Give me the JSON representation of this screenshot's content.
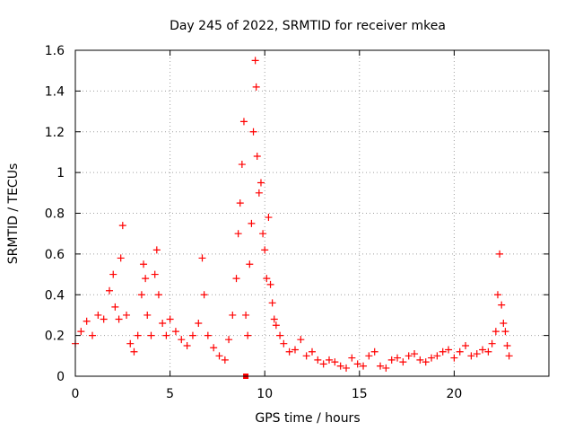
{
  "chart_data": {
    "type": "scatter",
    "title": "Day 245 of 2022, SRMTID for receiver mkea",
    "xlabel": "GPS time / hours",
    "ylabel": "SRMTID / TECUs",
    "xlim": [
      0,
      25
    ],
    "ylim": [
      0,
      1.6
    ],
    "xticks": [
      0,
      5,
      10,
      15,
      20
    ],
    "yticks": [
      0,
      0.2,
      0.4,
      0.6,
      0.8,
      1,
      1.2,
      1.4,
      1.6
    ],
    "xtick_labels": [
      "0",
      "5",
      "10",
      "15",
      "20"
    ],
    "ytick_labels": [
      "0",
      "0.2",
      "0.4",
      "0.6",
      "0.8",
      "1",
      "1.2",
      "1.4",
      "1.6"
    ],
    "grid": true,
    "marker": "+",
    "series": [
      {
        "name": "SRMTID",
        "color": "#ff0000",
        "x": [
          0.0,
          0.3,
          0.6,
          0.9,
          1.2,
          1.5,
          1.8,
          2.0,
          2.1,
          2.3,
          2.4,
          2.5,
          2.7,
          2.9,
          3.1,
          3.3,
          3.5,
          3.6,
          3.7,
          3.8,
          4.0,
          4.2,
          4.3,
          4.4,
          4.6,
          4.8,
          5.0,
          5.3,
          5.6,
          5.9,
          6.2,
          6.5,
          6.7,
          6.8,
          7.0,
          7.3,
          7.6,
          7.9,
          8.1,
          8.3,
          8.5,
          8.6,
          8.7,
          8.8,
          8.9,
          9.0,
          9.1,
          9.2,
          9.3,
          9.4,
          9.5,
          9.55,
          9.6,
          9.7,
          9.8,
          9.9,
          10.0,
          10.1,
          10.2,
          10.3,
          10.4,
          10.5,
          10.6,
          10.8,
          11.0,
          11.3,
          11.6,
          11.9,
          12.2,
          12.5,
          12.8,
          13.1,
          13.4,
          13.7,
          14.0,
          14.3,
          14.6,
          14.9,
          15.2,
          15.5,
          15.8,
          16.1,
          16.4,
          16.7,
          17.0,
          17.3,
          17.6,
          17.9,
          18.2,
          18.5,
          18.8,
          19.1,
          19.4,
          19.7,
          20.0,
          20.3,
          20.6,
          20.9,
          21.2,
          21.5,
          21.8,
          22.0,
          22.2,
          22.3,
          22.4,
          22.5,
          22.6,
          22.7,
          22.8,
          22.9
        ],
        "y": [
          0.16,
          0.22,
          0.27,
          0.2,
          0.3,
          0.28,
          0.42,
          0.5,
          0.34,
          0.28,
          0.58,
          0.74,
          0.3,
          0.16,
          0.12,
          0.2,
          0.4,
          0.55,
          0.48,
          0.3,
          0.2,
          0.5,
          0.62,
          0.4,
          0.26,
          0.2,
          0.28,
          0.22,
          0.18,
          0.15,
          0.2,
          0.26,
          0.58,
          0.4,
          0.2,
          0.14,
          0.1,
          0.08,
          0.18,
          0.3,
          0.48,
          0.7,
          0.85,
          1.04,
          1.25,
          0.3,
          0.2,
          0.55,
          0.75,
          1.2,
          1.55,
          1.42,
          1.08,
          0.9,
          0.95,
          0.7,
          0.62,
          0.48,
          0.78,
          0.45,
          0.36,
          0.28,
          0.25,
          0.2,
          0.16,
          0.12,
          0.13,
          0.18,
          0.1,
          0.12,
          0.08,
          0.06,
          0.08,
          0.07,
          0.05,
          0.04,
          0.09,
          0.06,
          0.05,
          0.1,
          0.12,
          0.05,
          0.04,
          0.08,
          0.09,
          0.07,
          0.1,
          0.11,
          0.08,
          0.07,
          0.09,
          0.1,
          0.12,
          0.13,
          0.09,
          0.12,
          0.15,
          0.1,
          0.11,
          0.13,
          0.12,
          0.16,
          0.22,
          0.4,
          0.6,
          0.35,
          0.26,
          0.22,
          0.15,
          0.1
        ]
      },
      {
        "name": "marker",
        "color": "#ff0000",
        "marker": "square",
        "x": [
          9.0
        ],
        "y": [
          0.0
        ]
      }
    ]
  }
}
